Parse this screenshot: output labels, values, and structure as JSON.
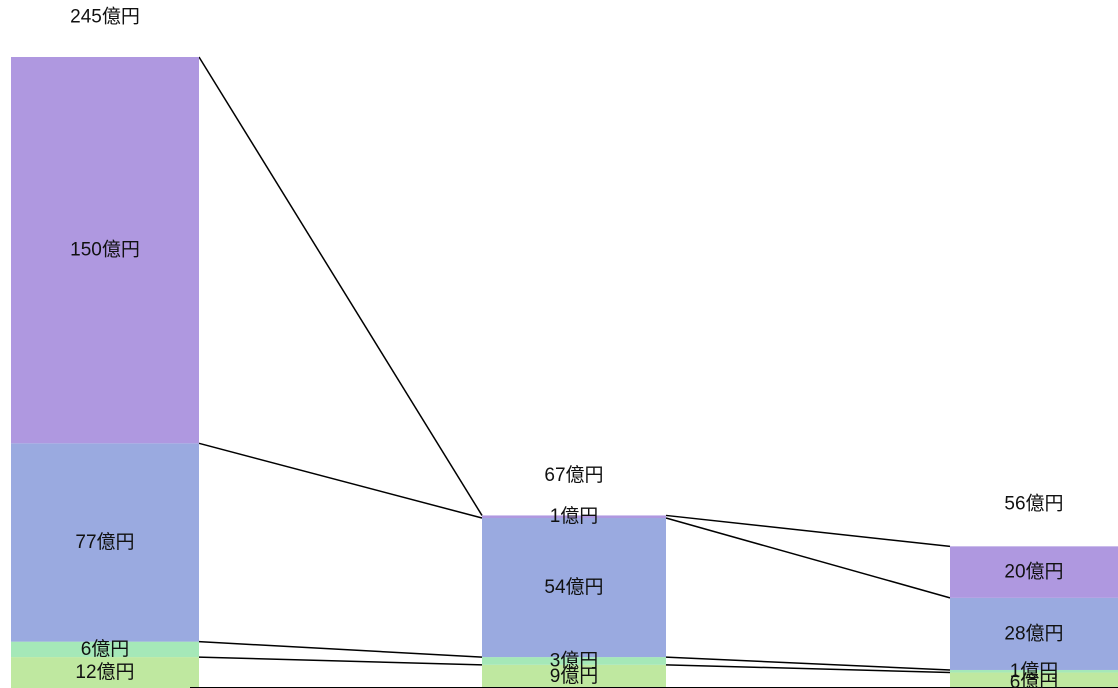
{
  "chart_data": {
    "type": "bar",
    "stacked": true,
    "unit": "億円",
    "categories": [
      "",
      "",
      ""
    ],
    "totals": [
      245,
      67,
      56
    ],
    "total_labels": [
      "245億円",
      "67億円",
      "56億円"
    ],
    "series": [
      {
        "color": "#bfe8a0",
        "values": [
          12,
          9,
          6
        ],
        "labels": [
          "12億円",
          "9億円",
          "6億円"
        ]
      },
      {
        "color": "#a5e8b8",
        "values": [
          6,
          3,
          1
        ],
        "labels": [
          "6億円",
          "3億円",
          "1億円"
        ]
      },
      {
        "color": "#9aaae0",
        "values": [
          77,
          54,
          28
        ],
        "labels": [
          "77億円",
          "54億円",
          "28億円"
        ]
      },
      {
        "color": "#af98e0",
        "values": [
          150,
          1,
          20
        ],
        "labels": [
          "150億円",
          "1億円",
          "20億円"
        ]
      }
    ],
    "connector_color": "#000000",
    "grid": false,
    "legend": "none"
  }
}
